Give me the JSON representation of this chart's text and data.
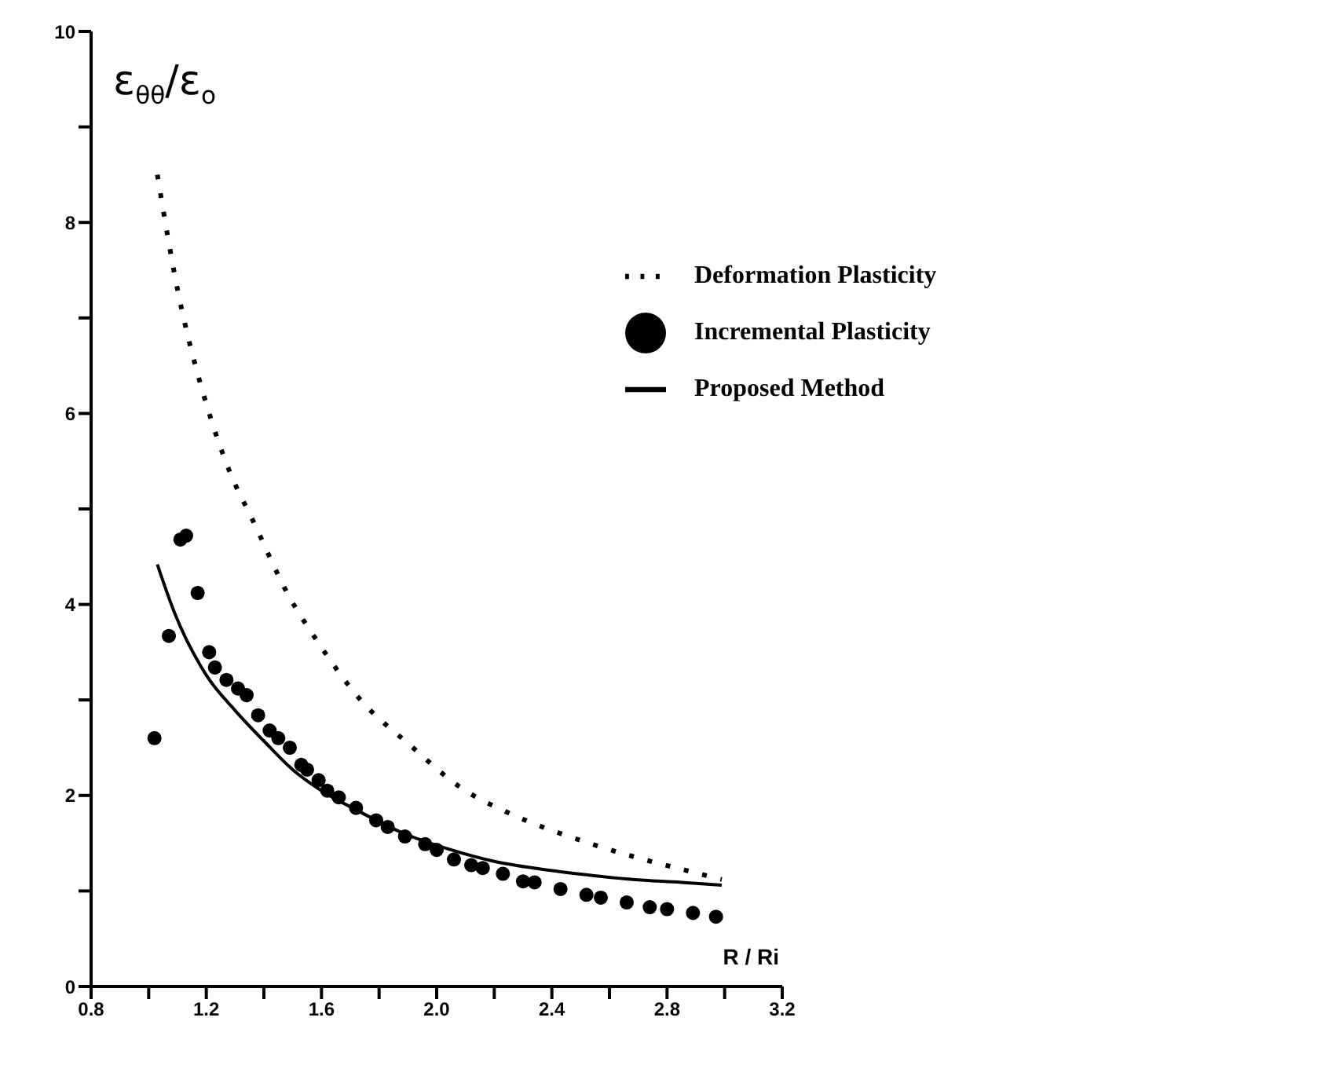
{
  "chart_data": {
    "type": "line",
    "xlabel": "R / Ri",
    "ylabel": "ε$_{θθ}$/ε$_{o}$",
    "xlim": [
      0.8,
      3.2
    ],
    "ylim": [
      0,
      10
    ],
    "xticks": [
      0.8,
      {
        "value": 1.0,
        "label": null
      },
      1.2,
      {
        "value": 1.4,
        "label": null
      },
      1.6,
      {
        "value": 1.8,
        "label": null
      },
      {
        "value": 2.0,
        "label": "2.0"
      },
      {
        "value": 2.2,
        "label": null
      },
      2.4,
      {
        "value": 2.6,
        "label": null
      },
      2.8,
      {
        "value": 3.0,
        "label": null
      },
      3.2
    ],
    "yticks": [
      0,
      {
        "value": 1,
        "label": null
      },
      2,
      {
        "value": 3,
        "label": null
      },
      4,
      {
        "value": 5,
        "label": null
      },
      6,
      {
        "value": 7,
        "label": null
      },
      8,
      {
        "value": 9,
        "label": null
      },
      10
    ],
    "grid": false,
    "legend": "top right",
    "series": [
      {
        "name": "Proposed Method",
        "color": "#000000",
        "line_style": "solid",
        "marker": "none",
        "x": [
          1.03,
          1.09,
          1.2,
          1.3,
          1.4,
          1.5,
          1.6,
          1.72,
          1.88,
          2.04,
          2.2,
          2.36,
          2.52,
          2.68,
          2.85,
          2.99
        ],
        "values": [
          4.42,
          3.91,
          3.26,
          2.89,
          2.57,
          2.27,
          2.05,
          1.85,
          1.61,
          1.44,
          1.31,
          1.23,
          1.17,
          1.12,
          1.09,
          1.06
        ]
      },
      {
        "name": "Incremental Plasticity",
        "type": "scatter",
        "color": "#000000",
        "marker": "circle",
        "x": [
          1.02,
          1.07,
          1.11,
          1.13,
          1.17,
          1.21,
          1.23,
          1.27,
          1.31,
          1.34,
          1.38,
          1.42,
          1.45,
          1.49,
          1.53,
          1.55,
          1.59,
          1.62,
          1.66,
          1.72,
          1.79,
          1.83,
          1.89,
          1.96,
          2.0,
          2.06,
          2.12,
          2.16,
          2.23,
          2.3,
          2.34,
          2.43,
          2.52,
          2.57,
          2.66,
          2.74,
          2.8,
          2.89,
          2.97
        ],
        "values": [
          2.6,
          3.67,
          4.68,
          4.72,
          4.12,
          3.5,
          3.34,
          3.21,
          3.12,
          3.05,
          2.84,
          2.68,
          2.6,
          2.5,
          2.32,
          2.27,
          2.16,
          2.05,
          1.98,
          1.87,
          1.74,
          1.67,
          1.57,
          1.49,
          1.43,
          1.33,
          1.27,
          1.24,
          1.18,
          1.1,
          1.09,
          1.02,
          0.96,
          0.93,
          0.88,
          0.83,
          0.81,
          0.77,
          0.73
        ]
      },
      {
        "name": "Deformation Plasticity",
        "color": "#000000",
        "line_style": "dotted",
        "marker": "none",
        "x": [
          1.03,
          1.1,
          1.2,
          1.28,
          1.36,
          1.49,
          1.58,
          1.73,
          1.91,
          2.08,
          2.27,
          2.47,
          2.66,
          2.86,
          2.99
        ],
        "values": [
          8.5,
          7.3,
          6.1,
          5.4,
          4.89,
          4.07,
          3.64,
          3.02,
          2.52,
          2.09,
          1.79,
          1.56,
          1.38,
          1.22,
          1.12
        ]
      }
    ]
  }
}
